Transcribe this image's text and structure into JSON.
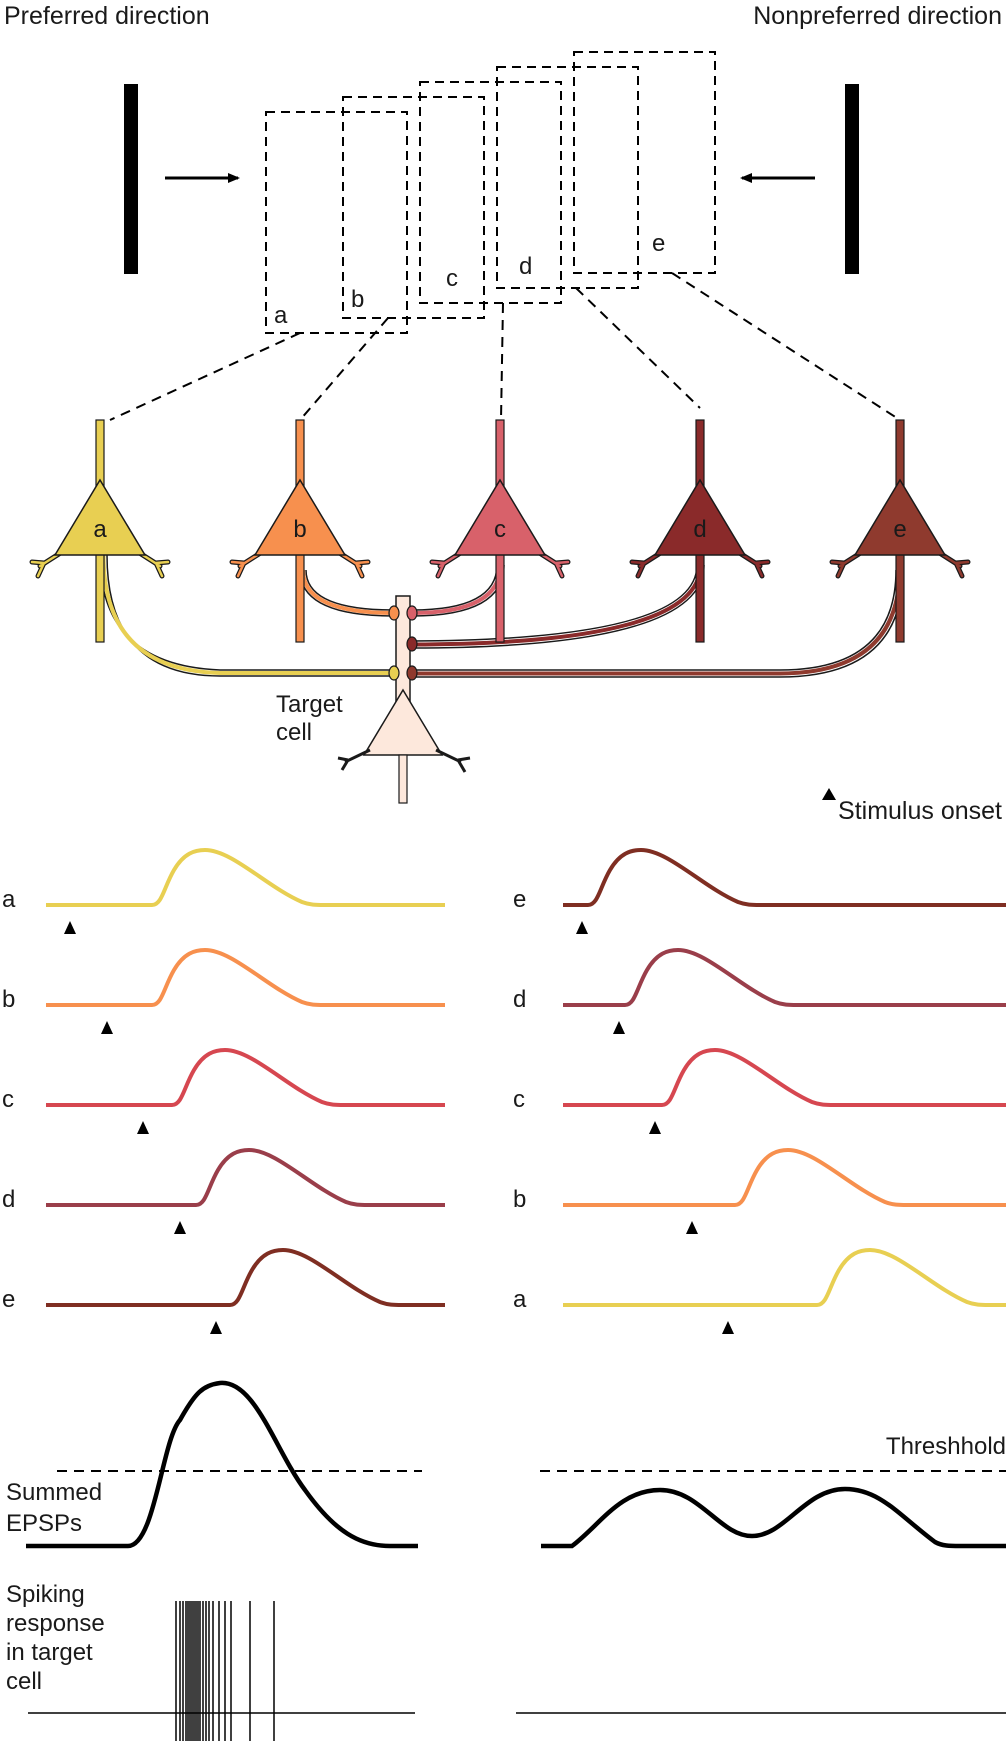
{
  "title_left": "Preferred direction",
  "title_right": "Nonpreferred direction",
  "receptive_fields": [
    "a",
    "b",
    "c",
    "d",
    "e"
  ],
  "neurons": [
    {
      "label": "a",
      "color": "#e8cf52"
    },
    {
      "label": "b",
      "color": "#f7904e"
    },
    {
      "label": "c",
      "color": "#d8616a"
    },
    {
      "label": "d",
      "color": "#8a2a2a"
    },
    {
      "label": "e",
      "color": "#8f3a2e"
    }
  ],
  "target_cell": {
    "line1": "Target",
    "line2": "cell",
    "color": "#fde8dc"
  },
  "legend": {
    "label": "Stimulus onset",
    "icon": "triangle-marker-icon"
  },
  "preferred_traces": [
    {
      "label": "a",
      "color": "#e8cf52"
    },
    {
      "label": "b",
      "color": "#f7904e"
    },
    {
      "label": "c",
      "color": "#d64750"
    },
    {
      "label": "d",
      "color": "#9a3e4a"
    },
    {
      "label": "e",
      "color": "#7f2e22"
    }
  ],
  "nonpreferred_traces": [
    {
      "label": "e",
      "color": "#7f2e22"
    },
    {
      "label": "d",
      "color": "#9a3e4a"
    },
    {
      "label": "c",
      "color": "#d64750"
    },
    {
      "label": "b",
      "color": "#f7904e"
    },
    {
      "label": "a",
      "color": "#e8cf52"
    }
  ],
  "summed": {
    "line1": "Summed",
    "line2": "EPSPs",
    "threshold": "Threshhold"
  },
  "spiking": {
    "line1": "Spiking",
    "line2": "response",
    "line3": "in target",
    "line4": "cell"
  }
}
